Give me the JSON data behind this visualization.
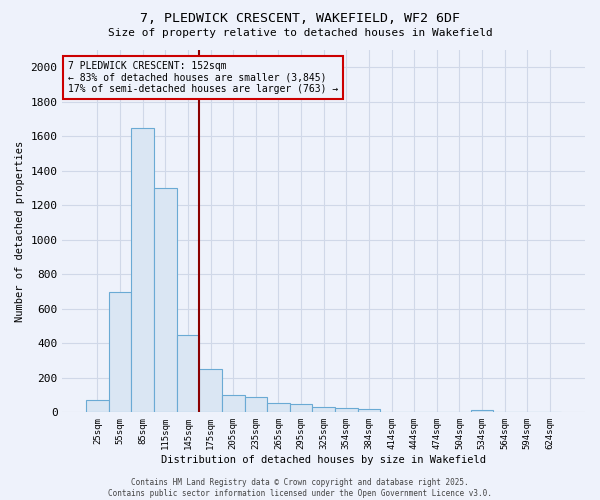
{
  "title_line1": "7, PLEDWICK CRESCENT, WAKEFIELD, WF2 6DF",
  "title_line2": "Size of property relative to detached houses in Wakefield",
  "xlabel": "Distribution of detached houses by size in Wakefield",
  "ylabel": "Number of detached properties",
  "categories": [
    "25sqm",
    "55sqm",
    "85sqm",
    "115sqm",
    "145sqm",
    "175sqm",
    "205sqm",
    "235sqm",
    "265sqm",
    "295sqm",
    "325sqm",
    "354sqm",
    "384sqm",
    "414sqm",
    "444sqm",
    "474sqm",
    "504sqm",
    "534sqm",
    "564sqm",
    "594sqm",
    "624sqm"
  ],
  "values": [
    70,
    700,
    1650,
    1300,
    450,
    250,
    100,
    90,
    55,
    50,
    30,
    25,
    20,
    0,
    0,
    0,
    0,
    15,
    0,
    0,
    0
  ],
  "bar_color": "#dae6f3",
  "bar_edge_color": "#6aaad4",
  "ylim": [
    0,
    2100
  ],
  "yticks": [
    0,
    200,
    400,
    600,
    800,
    1000,
    1200,
    1400,
    1600,
    1800,
    2000
  ],
  "vline_x_index": 4.5,
  "vline_color": "#8b0000",
  "annotation_text": "7 PLEDWICK CRESCENT: 152sqm\n← 83% of detached houses are smaller (3,845)\n17% of semi-detached houses are larger (763) →",
  "annotation_box_color": "#cc0000",
  "background_color": "#eef2fb",
  "grid_color": "#d0d8e8",
  "footnote": "Contains HM Land Registry data © Crown copyright and database right 2025.\nContains public sector information licensed under the Open Government Licence v3.0."
}
